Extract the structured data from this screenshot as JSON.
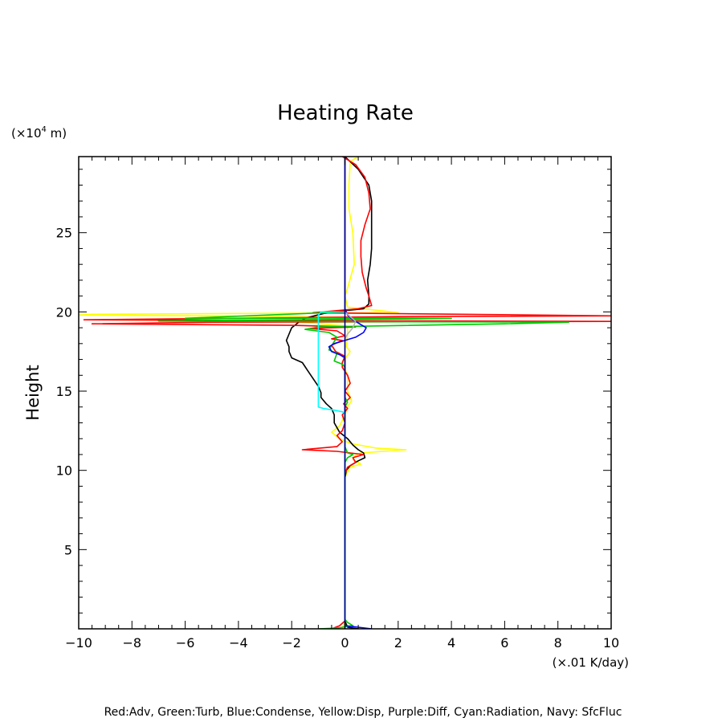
{
  "chart_data": {
    "type": "line",
    "title": "Heating Rate",
    "ylabel": "Height",
    "yunit_prefix": "(×10",
    "yunit_exp": "4",
    "yunit_suffix": " m)",
    "xunit": "(×.01 K/day)",
    "xlim": [
      -10,
      10
    ],
    "ylim": [
      0,
      29.8
    ],
    "xticks": [
      -10,
      -8,
      -6,
      -4,
      -2,
      0,
      2,
      4,
      6,
      8,
      10
    ],
    "xtick_labels": [
      "−10",
      "−8",
      "−6",
      "−4",
      "−2",
      "0",
      "2",
      "4",
      "6",
      "8",
      "10"
    ],
    "yticks": [
      5,
      10,
      15,
      20,
      25
    ],
    "ytick_labels": [
      "5",
      "10",
      "15",
      "20",
      "25"
    ],
    "footer": "Red:Adv, Green:Turb, Blue:Condense, Yellow:Disp, Purple:Diff, Cyan:Radiation, Navy: SfcFluc",
    "series": [
      {
        "color": "#ffff00",
        "points": [
          [
            0.5,
            29.8
          ],
          [
            0.2,
            29.5
          ],
          [
            0.15,
            28
          ],
          [
            0.15,
            26.5
          ],
          [
            0.3,
            25
          ],
          [
            0.35,
            23
          ],
          [
            0.1,
            21.5
          ],
          [
            0.0,
            21
          ],
          [
            0.1,
            20.3
          ],
          [
            1.5,
            20.05
          ],
          [
            2.0,
            19.95
          ],
          [
            -9.5,
            19.85
          ],
          [
            -10,
            19.8
          ],
          [
            -5,
            19.75
          ],
          [
            0.5,
            19.65
          ],
          [
            -6,
            19.55
          ],
          [
            -9,
            19.5
          ],
          [
            -2,
            19.4
          ],
          [
            0.1,
            19.1
          ],
          [
            0.1,
            18.5
          ],
          [
            0.05,
            17.8
          ],
          [
            0.2,
            17.5
          ],
          [
            -0.1,
            16.8
          ],
          [
            0.1,
            16
          ],
          [
            0.1,
            15
          ],
          [
            0.25,
            14.4
          ],
          [
            0.1,
            14
          ],
          [
            0.0,
            13.5
          ],
          [
            -0.2,
            12.8
          ],
          [
            -0.5,
            12.4
          ],
          [
            -0.2,
            12
          ],
          [
            0.2,
            11.7
          ],
          [
            1.2,
            11.4
          ],
          [
            2.3,
            11.3
          ],
          [
            0.6,
            11.1
          ],
          [
            0.35,
            10.9
          ],
          [
            0.3,
            10.7
          ],
          [
            0.6,
            10.4
          ],
          [
            0.2,
            10.2
          ],
          [
            0.0,
            9.6
          ],
          [
            0.0,
            9
          ],
          [
            0.0,
            0.5
          ],
          [
            -0.1,
            0
          ]
        ]
      },
      {
        "color": "#000000",
        "points": [
          [
            0.0,
            29.8
          ],
          [
            0.5,
            29
          ],
          [
            0.9,
            28
          ],
          [
            1.0,
            27
          ],
          [
            1.0,
            25
          ],
          [
            1.0,
            24
          ],
          [
            0.95,
            23
          ],
          [
            0.85,
            22
          ],
          [
            0.9,
            21
          ],
          [
            0.9,
            20.5
          ],
          [
            0.7,
            20.2
          ],
          [
            0.1,
            20.1
          ],
          [
            -0.8,
            19.9
          ],
          [
            -1.5,
            19.6
          ],
          [
            -1.7,
            19.4
          ],
          [
            -2.0,
            19.0
          ],
          [
            -2.1,
            18.6
          ],
          [
            -2.2,
            18.2
          ],
          [
            -2.1,
            17.8
          ],
          [
            -2.1,
            17.5
          ],
          [
            -2.0,
            17.1
          ],
          [
            -1.6,
            16.8
          ],
          [
            -1.4,
            16.3
          ],
          [
            -1.2,
            15.8
          ],
          [
            -1.0,
            15.3
          ],
          [
            -0.9,
            14.9
          ],
          [
            -0.9,
            14.6
          ],
          [
            -0.7,
            14.2
          ],
          [
            -0.5,
            13.9
          ],
          [
            -0.4,
            13.5
          ],
          [
            -0.4,
            13.0
          ],
          [
            -0.2,
            12.4
          ],
          [
            0.1,
            12.0
          ],
          [
            0.3,
            11.6
          ],
          [
            0.5,
            11.3
          ],
          [
            0.7,
            11.1
          ],
          [
            0.75,
            10.8
          ],
          [
            0.5,
            10.6
          ],
          [
            0.2,
            10.3
          ],
          [
            0.05,
            10.0
          ],
          [
            0.0,
            9.5
          ],
          [
            0.0,
            0.5
          ],
          [
            0.1,
            0.1
          ],
          [
            0.5,
            0
          ]
        ]
      },
      {
        "color": "#ff0000",
        "points": [
          [
            -0.1,
            29.8
          ],
          [
            0.4,
            29.3
          ],
          [
            0.75,
            28.5
          ],
          [
            0.9,
            27.5
          ],
          [
            0.95,
            26.5
          ],
          [
            0.75,
            25.5
          ],
          [
            0.6,
            24.5
          ],
          [
            0.6,
            23.5
          ],
          [
            0.65,
            22.5
          ],
          [
            0.8,
            21.5
          ],
          [
            0.9,
            21
          ],
          [
            1.0,
            20.4
          ],
          [
            0.5,
            20.2
          ],
          [
            -1.2,
            19.95
          ],
          [
            10,
            19.75
          ],
          [
            2,
            19.7
          ],
          [
            -4,
            19.6
          ],
          [
            -9.8,
            19.5
          ],
          [
            -2,
            19.45
          ],
          [
            10,
            19.4
          ],
          [
            -5,
            19.35
          ],
          [
            -9.5,
            19.25
          ],
          [
            -2,
            19.15
          ],
          [
            0.4,
            19.05
          ],
          [
            -1.3,
            18.95
          ],
          [
            -0.3,
            18.8
          ],
          [
            0,
            18.5
          ],
          [
            -0.5,
            18.3
          ],
          [
            -0.1,
            18.2
          ],
          [
            -0.5,
            17.9
          ],
          [
            -0.35,
            17.5
          ],
          [
            0.0,
            17.2
          ],
          [
            -0.1,
            16.8
          ],
          [
            -0.1,
            16.5
          ],
          [
            0.1,
            16.0
          ],
          [
            0.2,
            15.5
          ],
          [
            0.0,
            15.0
          ],
          [
            0.2,
            14.6
          ],
          [
            -0.05,
            14.2
          ],
          [
            0.1,
            13.9
          ],
          [
            -0.1,
            13.5
          ],
          [
            0.0,
            13.0
          ],
          [
            -0.1,
            12.5
          ],
          [
            -0.3,
            12.2
          ],
          [
            -0.1,
            11.8
          ],
          [
            -0.3,
            11.5
          ],
          [
            -1.6,
            11.3
          ],
          [
            -0.3,
            11.2
          ],
          [
            0.7,
            11.0
          ],
          [
            0.3,
            10.8
          ],
          [
            0.4,
            10.5
          ],
          [
            0.1,
            10.2
          ],
          [
            0.0,
            9.8
          ],
          [
            0.0,
            0.5
          ],
          [
            -0.2,
            0.2
          ],
          [
            -0.5,
            0
          ]
        ]
      },
      {
        "color": "#00c800",
        "points": [
          [
            0.0,
            20.0
          ],
          [
            -6,
            19.6
          ],
          [
            1.5,
            19.62
          ],
          [
            4,
            19.6
          ],
          [
            2,
            19.55
          ],
          [
            -4,
            19.48
          ],
          [
            -7,
            19.42
          ],
          [
            8.4,
            19.35
          ],
          [
            6,
            19.25
          ],
          [
            -1.0,
            19.05
          ],
          [
            -1.5,
            18.9
          ],
          [
            -0.6,
            18.7
          ],
          [
            -0.3,
            18.4
          ],
          [
            -0.6,
            17.6
          ],
          [
            -0.3,
            17.4
          ],
          [
            -0.4,
            16.9
          ],
          [
            -0.1,
            16.7
          ],
          [
            0,
            16.5
          ],
          [
            0,
            14.6
          ],
          [
            0.1,
            14.3
          ],
          [
            0,
            14.0
          ],
          [
            0,
            11.5
          ],
          [
            0.1,
            11.1
          ],
          [
            0.3,
            11.0
          ],
          [
            0.1,
            10.8
          ],
          [
            0,
            10.5
          ],
          [
            0,
            0.6
          ],
          [
            0.1,
            0.4
          ],
          [
            0.3,
            0.2
          ],
          [
            -0.3,
            0.05
          ],
          [
            -1.0,
            0
          ]
        ]
      },
      {
        "color": "#0000ff",
        "points": [
          [
            0.0,
            29.8
          ],
          [
            0.0,
            20.2
          ],
          [
            0.1,
            19.8
          ],
          [
            0.3,
            19.5
          ],
          [
            0.6,
            19.2
          ],
          [
            0.8,
            19.0
          ],
          [
            0.7,
            18.7
          ],
          [
            0.4,
            18.4
          ],
          [
            0.0,
            18.2
          ],
          [
            -0.4,
            18.0
          ],
          [
            -0.6,
            17.8
          ],
          [
            -0.5,
            17.5
          ],
          [
            -0.2,
            17.3
          ],
          [
            0.0,
            17.1
          ],
          [
            0.0,
            0.2
          ],
          [
            0.5,
            0.1
          ],
          [
            1.0,
            0
          ]
        ]
      },
      {
        "color": "#00ffff",
        "points": [
          [
            0.0,
            20.0
          ],
          [
            -0.9,
            20.0
          ],
          [
            -1.0,
            19.8
          ],
          [
            -1.0,
            14.0
          ],
          [
            -0.8,
            13.9
          ],
          [
            -0.4,
            13.8
          ],
          [
            -0.1,
            13.7
          ],
          [
            0.0,
            13.6
          ],
          [
            0.0,
            0
          ]
        ]
      },
      {
        "color": "#b4b4b4",
        "points": [
          [
            0.0,
            20.0
          ],
          [
            0.4,
            19.4
          ],
          [
            0.3,
            19.0
          ],
          [
            0.1,
            18.6
          ],
          [
            0.0,
            18.3
          ]
        ]
      },
      {
        "color": "#000080",
        "points": [
          [
            0.0,
            29.8
          ],
          [
            0.0,
            0
          ]
        ]
      }
    ]
  }
}
